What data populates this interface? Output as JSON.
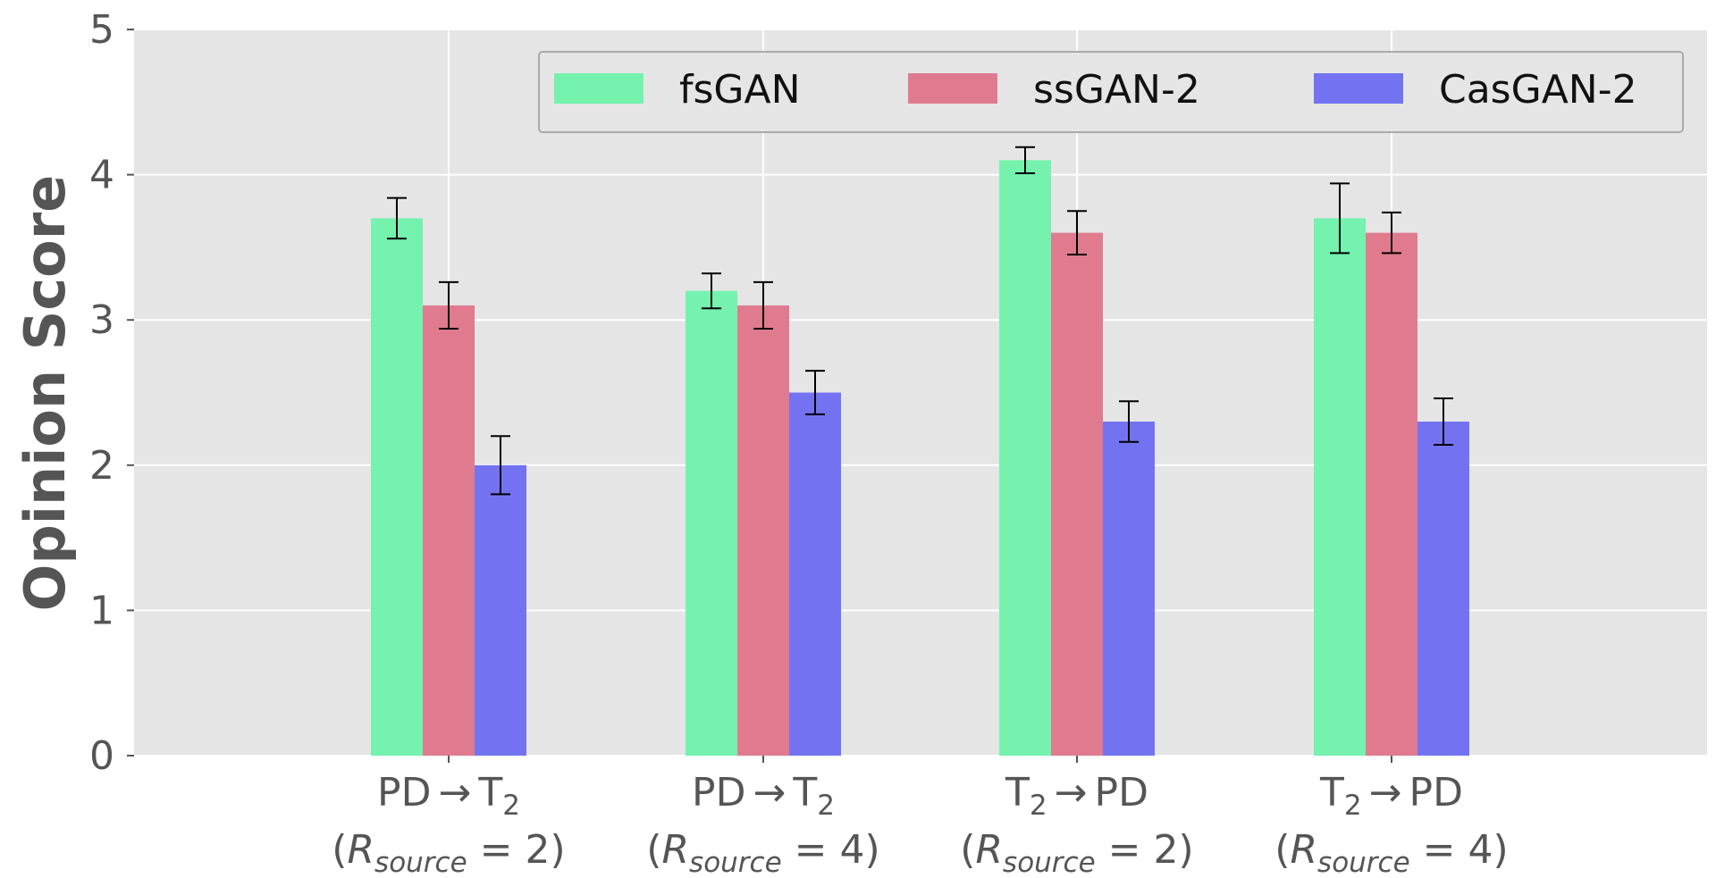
{
  "chart_data": {
    "type": "bar",
    "ylabel": "Opinion Score",
    "ylim": [
      0,
      5
    ],
    "yticks": [
      "0",
      "1",
      "2",
      "3",
      "4",
      "5"
    ],
    "grid": true,
    "legend_position": "top-right",
    "categories": [
      {
        "line1": "PD → T₂",
        "line2": "(R_source = 2)"
      },
      {
        "line1": "PD → T₂",
        "line2": "(R_source = 4)"
      },
      {
        "line1": "T₂ → PD",
        "line2": "(R_source = 2)"
      },
      {
        "line1": "T₂ → PD",
        "line2": "(R_source = 4)"
      }
    ],
    "category_parts": [
      {
        "a": "PD",
        "arrow": "→",
        "b": "T",
        "b_sub": "2",
        "r_pre": "(",
        "r_var": "R",
        "r_sub": "source",
        "r_eq": " = 2)"
      },
      {
        "a": "PD",
        "arrow": "→",
        "b": "T",
        "b_sub": "2",
        "r_pre": "(",
        "r_var": "R",
        "r_sub": "source",
        "r_eq": " = 4)"
      },
      {
        "a": "T",
        "a_sub": "2",
        "arrow": "→",
        "b": "PD",
        "r_pre": "(",
        "r_var": "R",
        "r_sub": "source",
        "r_eq": " = 2)"
      },
      {
        "a": "T",
        "a_sub": "2",
        "arrow": "→",
        "b": "PD",
        "r_pre": "(",
        "r_var": "R",
        "r_sub": "source",
        "r_eq": " = 4)"
      }
    ],
    "series": [
      {
        "name": "fsGAN",
        "color": "#74f2ae",
        "values": [
          3.7,
          3.2,
          4.1,
          3.7
        ],
        "errors": [
          0.14,
          0.12,
          0.09,
          0.24
        ]
      },
      {
        "name": "ssGAN-2",
        "color": "#e07b8f",
        "values": [
          3.1,
          3.1,
          3.6,
          3.6
        ],
        "errors": [
          0.16,
          0.16,
          0.15,
          0.14
        ]
      },
      {
        "name": "CasGAN-2",
        "color": "#7373f2",
        "values": [
          2.0,
          2.5,
          2.3,
          2.3
        ],
        "errors": [
          0.2,
          0.15,
          0.14,
          0.16
        ]
      }
    ]
  }
}
